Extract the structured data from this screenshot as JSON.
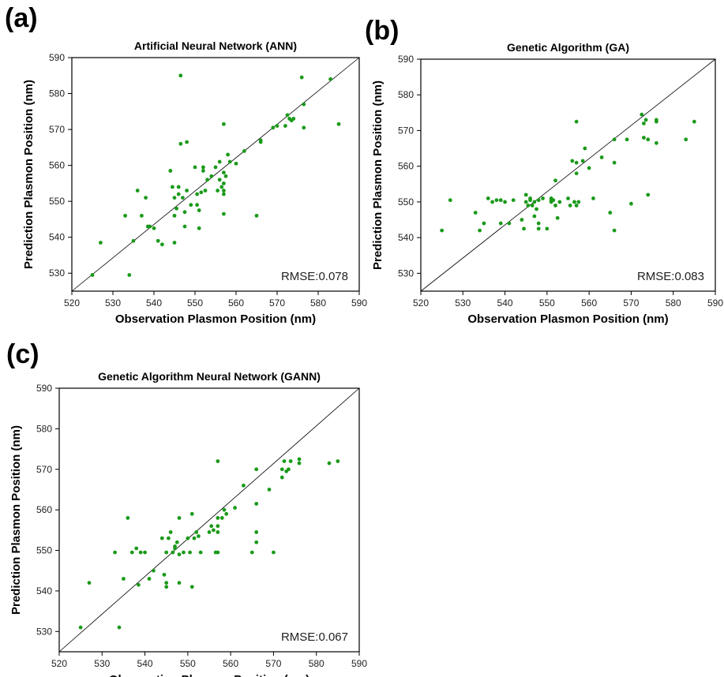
{
  "chart_data": [
    {
      "panel_label": "(a)",
      "type": "scatter",
      "title": "Artificial Neural Network (ANN)",
      "xlabel": "Observation Plasmon Position (nm)",
      "ylabel": "Prediction Plasmon Position (nm)",
      "xlim": [
        520,
        590
      ],
      "ylim": [
        525,
        590
      ],
      "xticks": [
        520,
        530,
        540,
        550,
        560,
        570,
        580,
        590
      ],
      "yticks": [
        530,
        540,
        550,
        560,
        570,
        580,
        590
      ],
      "annotation": "RMSE:0.078",
      "point_color": "#1a9a1a",
      "reference_line": [
        [
          520,
          525
        ],
        [
          590,
          590
        ]
      ],
      "grid": false,
      "points": [
        [
          525,
          529.5
        ],
        [
          527,
          538.5
        ],
        [
          533,
          546
        ],
        [
          534,
          529.5
        ],
        [
          535,
          539
        ],
        [
          536,
          553
        ],
        [
          537,
          546
        ],
        [
          538,
          551
        ],
        [
          538.5,
          543
        ],
        [
          539,
          543
        ],
        [
          540,
          542.5
        ],
        [
          541,
          539
        ],
        [
          542,
          538
        ],
        [
          544,
          558.5
        ],
        [
          544.5,
          554
        ],
        [
          545,
          551
        ],
        [
          545,
          546
        ],
        [
          545,
          538.5
        ],
        [
          545.5,
          548
        ],
        [
          546,
          552
        ],
        [
          546,
          554
        ],
        [
          546.5,
          566
        ],
        [
          546.5,
          585
        ],
        [
          547,
          551
        ],
        [
          547.5,
          547
        ],
        [
          547.5,
          543
        ],
        [
          548,
          566.5
        ],
        [
          548,
          553
        ],
        [
          549,
          549
        ],
        [
          550,
          559.5
        ],
        [
          550.5,
          552
        ],
        [
          550.5,
          549
        ],
        [
          551,
          542.5
        ],
        [
          551,
          547.5
        ],
        [
          551.5,
          552.5
        ],
        [
          552,
          558.5
        ],
        [
          552,
          559.5
        ],
        [
          552.5,
          553
        ],
        [
          553,
          556
        ],
        [
          554,
          557
        ],
        [
          555,
          559.5
        ],
        [
          555.5,
          553
        ],
        [
          556,
          561
        ],
        [
          556,
          556
        ],
        [
          556.5,
          554
        ],
        [
          557,
          571.5
        ],
        [
          557,
          558
        ],
        [
          557,
          555
        ],
        [
          557,
          553
        ],
        [
          557,
          552
        ],
        [
          557,
          546.5
        ],
        [
          557.5,
          557
        ],
        [
          558,
          563
        ],
        [
          558.5,
          561
        ],
        [
          560,
          560.5
        ],
        [
          562,
          564
        ],
        [
          565,
          546
        ],
        [
          566,
          567
        ],
        [
          566,
          566.5
        ],
        [
          569,
          570.5
        ],
        [
          570,
          571
        ],
        [
          572,
          571
        ],
        [
          572.5,
          574
        ],
        [
          573,
          573
        ],
        [
          573.5,
          572.5
        ],
        [
          574,
          573
        ],
        [
          576,
          584.5
        ],
        [
          576.5,
          577
        ],
        [
          576.5,
          570.5
        ],
        [
          583,
          584
        ],
        [
          585,
          571.5
        ]
      ]
    },
    {
      "panel_label": "(b)",
      "type": "scatter",
      "title": "Genetic Algorithm (GA)",
      "xlabel": "Observation Plasmon Position (nm)",
      "ylabel": "Prediction Plasmon Position (nm)",
      "xlim": [
        520,
        590
      ],
      "ylim": [
        525,
        590
      ],
      "xticks": [
        520,
        530,
        540,
        550,
        560,
        570,
        580,
        590
      ],
      "yticks": [
        530,
        540,
        550,
        560,
        570,
        580,
        590
      ],
      "annotation": "RMSE:0.083",
      "point_color": "#1a9a1a",
      "reference_line": [
        [
          520,
          525
        ],
        [
          590,
          590
        ]
      ],
      "grid": false,
      "points": [
        [
          525,
          542
        ],
        [
          527,
          550.5
        ],
        [
          533,
          547
        ],
        [
          534,
          542
        ],
        [
          535,
          544
        ],
        [
          536,
          551
        ],
        [
          537,
          550
        ],
        [
          538,
          550.5
        ],
        [
          539,
          550.5
        ],
        [
          539,
          544
        ],
        [
          540,
          550
        ],
        [
          541,
          544
        ],
        [
          542,
          550.5
        ],
        [
          544,
          545
        ],
        [
          544.5,
          542.5
        ],
        [
          545,
          552
        ],
        [
          545,
          550
        ],
        [
          545.5,
          549
        ],
        [
          546,
          551
        ],
        [
          546,
          550.5
        ],
        [
          546.5,
          549
        ],
        [
          547,
          546
        ],
        [
          547,
          550
        ],
        [
          547.5,
          548
        ],
        [
          548,
          550.5
        ],
        [
          548,
          544
        ],
        [
          548,
          542.5
        ],
        [
          549,
          551
        ],
        [
          550,
          542.5
        ],
        [
          551,
          551
        ],
        [
          551,
          550.5
        ],
        [
          551,
          550
        ],
        [
          551.5,
          550.5
        ],
        [
          552,
          556
        ],
        [
          552,
          549
        ],
        [
          552.5,
          545.5
        ],
        [
          553,
          550
        ],
        [
          555,
          551
        ],
        [
          555.5,
          549
        ],
        [
          556,
          561.5
        ],
        [
          556.5,
          550
        ],
        [
          557,
          572.5
        ],
        [
          557,
          561
        ],
        [
          557,
          549
        ],
        [
          557,
          558
        ],
        [
          557.5,
          550
        ],
        [
          558.5,
          561.5
        ],
        [
          559,
          565
        ],
        [
          560,
          559.5
        ],
        [
          561,
          551
        ],
        [
          563,
          562.5
        ],
        [
          565,
          547
        ],
        [
          566,
          567.5
        ],
        [
          566,
          561
        ],
        [
          566,
          542
        ],
        [
          569,
          567.5
        ],
        [
          570,
          549.5
        ],
        [
          572.5,
          574.5
        ],
        [
          573,
          568
        ],
        [
          573,
          572
        ],
        [
          573.5,
          573
        ],
        [
          574,
          567.5
        ],
        [
          574,
          552
        ],
        [
          576,
          573
        ],
        [
          576,
          572.5
        ],
        [
          576,
          566.5
        ],
        [
          583,
          567.5
        ],
        [
          585,
          572.5
        ]
      ]
    },
    {
      "panel_label": "(c)",
      "type": "scatter",
      "title": "Genetic Algorithm Neural Network (GANN)",
      "xlabel": "Observation Plasmon Position (nm)",
      "ylabel": "Prediction Plasmon Position (nm)",
      "xlim": [
        520,
        590
      ],
      "ylim": [
        525,
        590
      ],
      "xticks": [
        520,
        530,
        540,
        550,
        560,
        570,
        580,
        590
      ],
      "yticks": [
        530,
        540,
        550,
        560,
        570,
        580,
        590
      ],
      "annotation": "RMSE:0.067",
      "point_color": "#1a9a1a",
      "reference_line": [
        [
          520,
          525
        ],
        [
          590,
          590
        ]
      ],
      "grid": false,
      "points": [
        [
          525,
          531
        ],
        [
          527,
          542
        ],
        [
          533,
          549.5
        ],
        [
          534,
          531
        ],
        [
          535,
          543
        ],
        [
          536,
          558
        ],
        [
          537,
          549.5
        ],
        [
          538,
          550.5
        ],
        [
          538.5,
          541.5
        ],
        [
          539,
          549.5
        ],
        [
          540,
          549.5
        ],
        [
          541,
          543
        ],
        [
          542,
          545
        ],
        [
          544,
          553
        ],
        [
          544.5,
          544
        ],
        [
          545,
          549.5
        ],
        [
          545,
          542
        ],
        [
          545,
          541
        ],
        [
          545.5,
          553
        ],
        [
          546,
          554.5
        ],
        [
          546.5,
          549.5
        ],
        [
          547,
          551
        ],
        [
          547,
          550.5
        ],
        [
          547.5,
          552
        ],
        [
          548,
          549
        ],
        [
          548,
          542
        ],
        [
          548,
          558
        ],
        [
          549,
          549.5
        ],
        [
          550,
          553
        ],
        [
          550.5,
          549.5
        ],
        [
          551,
          559
        ],
        [
          551,
          541
        ],
        [
          551.5,
          553
        ],
        [
          552,
          554.5
        ],
        [
          552.5,
          553.5
        ],
        [
          553,
          549.5
        ],
        [
          555,
          554.5
        ],
        [
          555.5,
          556
        ],
        [
          556,
          555
        ],
        [
          556.5,
          549.5
        ],
        [
          557,
          572
        ],
        [
          557,
          558
        ],
        [
          557,
          556
        ],
        [
          557,
          554.5
        ],
        [
          557,
          549.5
        ],
        [
          558,
          558
        ],
        [
          558.5,
          560
        ],
        [
          559,
          559
        ],
        [
          561,
          560.5
        ],
        [
          563,
          566
        ],
        [
          565,
          549.5
        ],
        [
          566,
          570
        ],
        [
          566,
          561.5
        ],
        [
          566,
          554.5
        ],
        [
          566,
          552
        ],
        [
          569,
          565
        ],
        [
          570,
          549.5
        ],
        [
          572,
          570
        ],
        [
          572,
          568
        ],
        [
          572.5,
          572
        ],
        [
          573,
          569.5
        ],
        [
          573.5,
          570
        ],
        [
          574,
          572
        ],
        [
          576,
          572.5
        ],
        [
          576,
          571.5
        ],
        [
          583,
          571.5
        ],
        [
          585,
          572
        ]
      ]
    }
  ]
}
